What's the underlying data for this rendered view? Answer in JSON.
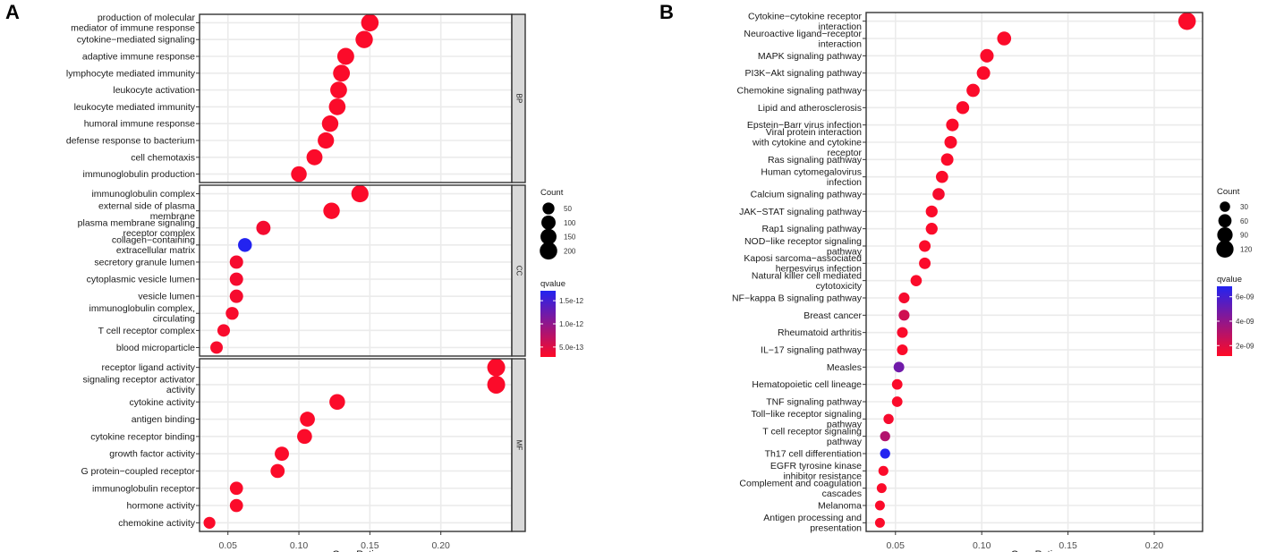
{
  "chart_data": [
    {
      "panel_label": "A",
      "type": "scatter",
      "subtype": "dotplot",
      "xlabel": "GeneRatio",
      "xlim": [
        0.03,
        0.25
      ],
      "xticks": [
        0.05,
        0.1,
        0.15,
        0.2
      ],
      "xtick_labels": [
        "0.05",
        "0.10",
        "0.15",
        "0.20"
      ],
      "legend": {
        "size_title": "Count",
        "size_values": [
          50,
          100,
          150,
          200
        ],
        "size_labels": [
          "50",
          "100",
          "150",
          "200"
        ],
        "color_title": "qvalue",
        "color_labels": [
          "1.5e-12",
          "1.0e-12",
          "5.0e-13"
        ],
        "color_high": "#2323f0",
        "color_low": "#ff0a26"
      },
      "facets": [
        {
          "strip": "BP",
          "items": [
            {
              "term": "production of molecular mediator of immune response",
              "lines": [
                "production of molecular",
                "mediator of immune response"
              ],
              "x": 0.15,
              "count": 200,
              "q": 0.02
            },
            {
              "term": "cytokine-mediated signaling",
              "lines": [
                "cytokine−mediated signaling"
              ],
              "x": 0.146,
              "count": 195,
              "q": 0.02
            },
            {
              "term": "adaptive immune response",
              "lines": [
                "adaptive immune response"
              ],
              "x": 0.133,
              "count": 180,
              "q": 0.02
            },
            {
              "term": "lymphocyte mediated immunity",
              "lines": [
                "lymphocyte mediated immunity"
              ],
              "x": 0.13,
              "count": 178,
              "q": 0.02
            },
            {
              "term": "leukocyte activation",
              "lines": [
                "leukocyte activation"
              ],
              "x": 0.128,
              "count": 175,
              "q": 0.02
            },
            {
              "term": "leukocyte mediated immunity",
              "lines": [
                "leukocyte mediated immunity"
              ],
              "x": 0.127,
              "count": 172,
              "q": 0.02
            },
            {
              "term": "humoral immune response",
              "lines": [
                "humoral immune response"
              ],
              "x": 0.122,
              "count": 165,
              "q": 0.02
            },
            {
              "term": "defense response to bacterium",
              "lines": [
                "defense response to bacterium"
              ],
              "x": 0.119,
              "count": 160,
              "q": 0.02
            },
            {
              "term": "cell chemotaxis",
              "lines": [
                "cell chemotaxis"
              ],
              "x": 0.111,
              "count": 150,
              "q": 0.02
            },
            {
              "term": "immunoglobulin production",
              "lines": [
                "immunoglobulin production"
              ],
              "x": 0.1,
              "count": 140,
              "q": 0.02
            }
          ]
        },
        {
          "strip": "CC",
          "items": [
            {
              "term": "immunoglobulin complex",
              "lines": [
                "immunoglobulin complex"
              ],
              "x": 0.143,
              "count": 190,
              "q": 0.02
            },
            {
              "term": "external side of plasma membrane",
              "lines": [
                "external side of plasma",
                "membrane"
              ],
              "x": 0.123,
              "count": 165,
              "q": 0.02
            },
            {
              "term": "plasma membrane signaling receptor complex",
              "lines": [
                "plasma membrane signaling",
                "receptor complex"
              ],
              "x": 0.075,
              "count": 100,
              "q": 0.05
            },
            {
              "term": "collagen-containing extracellular matrix",
              "lines": [
                "collagen−containing",
                "extracellular matrix"
              ],
              "x": 0.062,
              "count": 90,
              "q": 1.0
            },
            {
              "term": "secretory granule lumen",
              "lines": [
                "secretory granule lumen"
              ],
              "x": 0.056,
              "count": 80,
              "q": 0.04
            },
            {
              "term": "cytoplasmic vesicle lumen",
              "lines": [
                "cytoplasmic vesicle lumen"
              ],
              "x": 0.056,
              "count": 80,
              "q": 0.04
            },
            {
              "term": "vesicle lumen",
              "lines": [
                "vesicle lumen"
              ],
              "x": 0.056,
              "count": 80,
              "q": 0.04
            },
            {
              "term": "immunoglobulin complex, circulating",
              "lines": [
                "immunoglobulin complex,",
                "circulating"
              ],
              "x": 0.053,
              "count": 68,
              "q": 0.03
            },
            {
              "term": "T cell receptor complex",
              "lines": [
                "T cell receptor complex"
              ],
              "x": 0.047,
              "count": 62,
              "q": 0.03
            },
            {
              "term": "blood microparticle",
              "lines": [
                "blood microparticle"
              ],
              "x": 0.042,
              "count": 60,
              "q": 0.03
            }
          ]
        },
        {
          "strip": "MF",
          "items": [
            {
              "term": "receptor ligand activity",
              "lines": [
                "receptor ligand activity"
              ],
              "x": 0.239,
              "count": 215,
              "q": 0.02
            },
            {
              "term": "signaling receptor activator activity",
              "lines": [
                "signaling receptor activator",
                "activity"
              ],
              "x": 0.239,
              "count": 215,
              "q": 0.02
            },
            {
              "term": "cytokine activity",
              "lines": [
                "cytokine activity"
              ],
              "x": 0.127,
              "count": 140,
              "q": 0.02
            },
            {
              "term": "antigen binding",
              "lines": [
                "antigen binding"
              ],
              "x": 0.106,
              "count": 120,
              "q": 0.02
            },
            {
              "term": "cytokine receptor binding",
              "lines": [
                "cytokine receptor binding"
              ],
              "x": 0.104,
              "count": 118,
              "q": 0.02
            },
            {
              "term": "growth factor activity",
              "lines": [
                "growth factor activity"
              ],
              "x": 0.088,
              "count": 100,
              "q": 0.02
            },
            {
              "term": "G protein-coupled receptor binding",
              "lines": [
                "G protein−coupled receptor"
              ],
              "x": 0.085,
              "count": 96,
              "q": 0.02
            },
            {
              "term": "immunoglobulin receptor binding",
              "lines": [
                "immunoglobulin receptor"
              ],
              "x": 0.056,
              "count": 75,
              "q": 0.02
            },
            {
              "term": "hormone activity",
              "lines": [
                "hormone activity"
              ],
              "x": 0.056,
              "count": 75,
              "q": 0.02
            },
            {
              "term": "chemokine activity",
              "lines": [
                "chemokine activity"
              ],
              "x": 0.037,
              "count": 48,
              "q": 0.02
            }
          ]
        }
      ]
    },
    {
      "panel_label": "B",
      "type": "scatter",
      "subtype": "dotplot",
      "xlabel": "GeneRatio",
      "xlim": [
        0.033,
        0.228
      ],
      "xticks": [
        0.05,
        0.1,
        0.15,
        0.2
      ],
      "xtick_labels": [
        "0.05",
        "0.10",
        "0.15",
        "0.20"
      ],
      "legend": {
        "size_title": "Count",
        "size_values": [
          30,
          60,
          90,
          120
        ],
        "size_labels": [
          "30",
          "60",
          "90",
          "120"
        ],
        "color_title": "qvalue",
        "color_labels": [
          "6e-09",
          "4e-09",
          "2e-09"
        ],
        "color_high": "#2323f0",
        "color_low": "#ff0a26"
      },
      "facets": [
        {
          "strip": "",
          "items": [
            {
              "term": "Cytokine-cytokine receptor interaction",
              "lines": [
                "Cytokine−cytokine receptor",
                "interaction"
              ],
              "x": 0.219,
              "count": 125,
              "q": 0.02
            },
            {
              "term": "Neuroactive ligand-receptor interaction",
              "lines": [
                "Neuroactive ligand−receptor",
                "interaction"
              ],
              "x": 0.113,
              "count": 70,
              "q": 0.02
            },
            {
              "term": "MAPK signaling pathway",
              "lines": [
                "MAPK signaling pathway"
              ],
              "x": 0.103,
              "count": 64,
              "q": 0.02
            },
            {
              "term": "PI3K-Akt signaling pathway",
              "lines": [
                "PI3K−Akt signaling pathway"
              ],
              "x": 0.101,
              "count": 63,
              "q": 0.02
            },
            {
              "term": "Chemokine signaling pathway",
              "lines": [
                "Chemokine signaling pathway"
              ],
              "x": 0.095,
              "count": 60,
              "q": 0.02
            },
            {
              "term": "Lipid and atherosclerosis",
              "lines": [
                "Lipid and atherosclerosis"
              ],
              "x": 0.089,
              "count": 56,
              "q": 0.02
            },
            {
              "term": "Epstein-Barr virus infection",
              "lines": [
                "Epstein−Barr virus infection"
              ],
              "x": 0.083,
              "count": 53,
              "q": 0.02
            },
            {
              "term": "Viral protein interaction with cytokine and cytokine receptor",
              "lines": [
                "Viral protein interaction",
                "with cytokine and cytokine",
                "receptor"
              ],
              "x": 0.082,
              "count": 52,
              "q": 0.02
            },
            {
              "term": "Ras signaling pathway",
              "lines": [
                "Ras signaling pathway"
              ],
              "x": 0.08,
              "count": 51,
              "q": 0.02
            },
            {
              "term": "Human cytomegalovirus infection",
              "lines": [
                "Human cytomegalovirus",
                "infection"
              ],
              "x": 0.077,
              "count": 49,
              "q": 0.02
            },
            {
              "term": "Calcium signaling pathway",
              "lines": [
                "Calcium signaling pathway"
              ],
              "x": 0.075,
              "count": 48,
              "q": 0.04
            },
            {
              "term": "JAK-STAT signaling pathway",
              "lines": [
                "JAK−STAT signaling pathway"
              ],
              "x": 0.071,
              "count": 45,
              "q": 0.02
            },
            {
              "term": "Rap1 signaling pathway",
              "lines": [
                "Rap1 signaling pathway"
              ],
              "x": 0.071,
              "count": 45,
              "q": 0.02
            },
            {
              "term": "NOD-like receptor signaling pathway",
              "lines": [
                "NOD−like receptor signaling",
                "pathway"
              ],
              "x": 0.067,
              "count": 42,
              "q": 0.02
            },
            {
              "term": "Kaposi sarcoma-associated herpesvirus infection",
              "lines": [
                "Kaposi sarcoma−associated",
                "herpesvirus infection"
              ],
              "x": 0.067,
              "count": 42,
              "q": 0.02
            },
            {
              "term": "Natural killer cell mediated cytotoxicity",
              "lines": [
                "Natural killer cell mediated",
                "cytotoxicity"
              ],
              "x": 0.062,
              "count": 39,
              "q": 0.02
            },
            {
              "term": "NF-kappa B signaling pathway",
              "lines": [
                "NF−kappa B signaling pathway"
              ],
              "x": 0.055,
              "count": 35,
              "q": 0.04
            },
            {
              "term": "Breast cancer",
              "lines": [
                "Breast cancer"
              ],
              "x": 0.055,
              "count": 35,
              "q": 0.22
            },
            {
              "term": "Rheumatoid arthritis",
              "lines": [
                "Rheumatoid arthritis"
              ],
              "x": 0.054,
              "count": 34,
              "q": 0.02
            },
            {
              "term": "IL-17 signaling pathway",
              "lines": [
                "IL−17 signaling pathway"
              ],
              "x": 0.054,
              "count": 34,
              "q": 0.02
            },
            {
              "term": "Measles",
              "lines": [
                "Measles"
              ],
              "x": 0.052,
              "count": 33,
              "q": 0.65
            },
            {
              "term": "Hematopoietic cell lineage",
              "lines": [
                "Hematopoietic cell lineage"
              ],
              "x": 0.051,
              "count": 32,
              "q": 0.02
            },
            {
              "term": "TNF signaling pathway",
              "lines": [
                "TNF signaling pathway"
              ],
              "x": 0.051,
              "count": 32,
              "q": 0.02
            },
            {
              "term": "Toll-like receptor signaling pathway",
              "lines": [
                "Toll−like receptor signaling",
                "pathway"
              ],
              "x": 0.046,
              "count": 29,
              "q": 0.04
            },
            {
              "term": "T cell receptor signaling pathway",
              "lines": [
                "T cell receptor signaling",
                "pathway"
              ],
              "x": 0.044,
              "count": 28,
              "q": 0.35
            },
            {
              "term": "Th17 cell differentiation",
              "lines": [
                "Th17 cell differentiation"
              ],
              "x": 0.044,
              "count": 28,
              "q": 1.0
            },
            {
              "term": "EGFR tyrosine kinase inhibitor resistance",
              "lines": [
                "EGFR tyrosine kinase",
                "inhibitor resistance"
              ],
              "x": 0.043,
              "count": 27,
              "q": 0.02
            },
            {
              "term": "Complement and coagulation cascades",
              "lines": [
                "Complement and coagulation",
                "cascades"
              ],
              "x": 0.042,
              "count": 26,
              "q": 0.02
            },
            {
              "term": "Melanoma",
              "lines": [
                "Melanoma"
              ],
              "x": 0.041,
              "count": 26,
              "q": 0.02
            },
            {
              "term": "Antigen processing and presentation",
              "lines": [
                "Antigen processing and",
                "presentation"
              ],
              "x": 0.041,
              "count": 26,
              "q": 0.02
            }
          ]
        }
      ]
    }
  ]
}
